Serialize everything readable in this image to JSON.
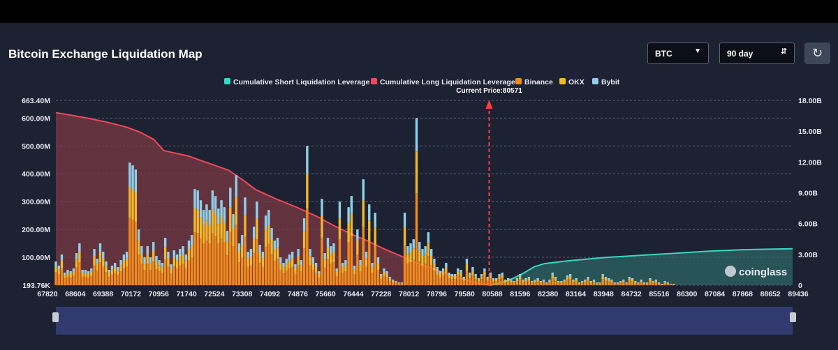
{
  "page": {
    "title": "Bitcoin Exchange Liquidation Map"
  },
  "controls": {
    "coin_select": "BTC",
    "range_select": "90 day",
    "refresh_icon": "refresh-icon"
  },
  "watermark": "coinglass",
  "colors": {
    "short_cum": "#35d8c2",
    "long_cum": "#f0475a",
    "binance": "#f28a1a",
    "okx": "#f5b728",
    "bybit": "#8fd0ea",
    "panel": "#1d2233"
  },
  "chart_data": {
    "type": "bar",
    "title": "",
    "legend_position": "top-center",
    "legend": [
      "Cumulative Short Liquidation Leverage",
      "Cumulative Long Liquidation Leverage",
      "Binance",
      "OKX",
      "Bybit"
    ],
    "current_price_label": "Current Price:80571",
    "current_price": 80571,
    "x_ticks": [
      "67820",
      "68604",
      "69388",
      "70172",
      "70956",
      "71740",
      "72524",
      "73308",
      "74092",
      "74876",
      "75660",
      "76444",
      "77228",
      "78012",
      "78796",
      "79580",
      "80588",
      "81596",
      "82380",
      "83164",
      "83948",
      "84732",
      "85516",
      "86300",
      "87084",
      "87868",
      "88652",
      "89436"
    ],
    "x_range": [
      67820,
      89500
    ],
    "y_left_ticks": [
      "663.40M",
      "600.00M",
      "500.00M",
      "400.00M",
      "300.00M",
      "200.00M",
      "100.00M",
      "193.76K"
    ],
    "y_left_range": [
      0,
      663.4
    ],
    "y_left_unit": "M",
    "y_right_ticks": [
      "18.00B",
      "15.00B",
      "12.00B",
      "9.00B",
      "6.00B",
      "3.00B",
      "0"
    ],
    "y_right_range": [
      0,
      18
    ],
    "y_right_unit": "B",
    "grid": true,
    "bars": {
      "x_start": 67820,
      "x_step": 87,
      "total": [
        85,
        70,
        110,
        45,
        55,
        50,
        60,
        115,
        150,
        55,
        55,
        50,
        60,
        130,
        95,
        150,
        120,
        85,
        55,
        70,
        80,
        65,
        90,
        110,
        120,
        440,
        430,
        415,
        200,
        140,
        100,
        140,
        100,
        155,
        105,
        90,
        80,
        170,
        120,
        75,
        125,
        110,
        130,
        140,
        110,
        160,
        180,
        345,
        340,
        305,
        270,
        290,
        270,
        340,
        320,
        275,
        305,
        280,
        195,
        350,
        255,
        395,
        150,
        180,
        315,
        120,
        130,
        210,
        300,
        145,
        120,
        250,
        270,
        205,
        160,
        170,
        100,
        80,
        95,
        110,
        120,
        75,
        130,
        90,
        240,
        500,
        130,
        100,
        80,
        50,
        310,
        115,
        170,
        140,
        150,
        60,
        300,
        80,
        90,
        280,
        320,
        70,
        200,
        90,
        380,
        120,
        290,
        80,
        260,
        100,
        40,
        60,
        50,
        30,
        20,
        15,
        10,
        10,
        260,
        140,
        150,
        165,
        600,
        155,
        130,
        140,
        190,
        130,
        95,
        65,
        50,
        60,
        80,
        45,
        40,
        40,
        60,
        55,
        30,
        95,
        45,
        65,
        40,
        25,
        40,
        60,
        30,
        45,
        25,
        25,
        40,
        45,
        20,
        25,
        20,
        15,
        25,
        40,
        20,
        25,
        30,
        15,
        20,
        25,
        15,
        20,
        10,
        20,
        45,
        30,
        15,
        15,
        20,
        35,
        40,
        20,
        25,
        10,
        15,
        20,
        30,
        15,
        20,
        10,
        10,
        40,
        30,
        25,
        20,
        10,
        10,
        15,
        20,
        10,
        30,
        25,
        15,
        10,
        20,
        10,
        10,
        25,
        15,
        20,
        10,
        5,
        15,
        10,
        5,
        5
      ],
      "binance_share": 0.55,
      "okx_share": 0.25,
      "bybit_share": 0.2
    },
    "cumulative_long": {
      "x": [
        67820,
        68200,
        68700,
        69300,
        69900,
        70300,
        70700,
        71000,
        71700,
        72300,
        72900,
        73300,
        73700,
        74300,
        74900,
        75500,
        76000,
        76500,
        77000,
        77500,
        78000,
        78500,
        79000,
        79500,
        80000,
        80300,
        80588
      ],
      "y": [
        16.8,
        16.6,
        16.3,
        15.9,
        15.4,
        14.9,
        14.2,
        13.1,
        12.6,
        11.9,
        11.2,
        10.3,
        9.3,
        8.4,
        7.6,
        6.7,
        5.8,
        5.0,
        4.3,
        3.5,
        2.8,
        2.1,
        1.5,
        0.9,
        0.4,
        0.15,
        0
      ]
    },
    "cumulative_short": {
      "x": [
        80588,
        81000,
        81300,
        81600,
        81900,
        82200,
        82700,
        83300,
        84000,
        85000,
        86000,
        87000,
        88000,
        88652,
        89500
      ],
      "y": [
        0,
        0.3,
        0.7,
        1.2,
        1.8,
        2.1,
        2.3,
        2.5,
        2.7,
        2.9,
        3.1,
        3.3,
        3.45,
        3.5,
        3.55
      ]
    },
    "scrollbar_range": [
      0,
      1
    ]
  }
}
